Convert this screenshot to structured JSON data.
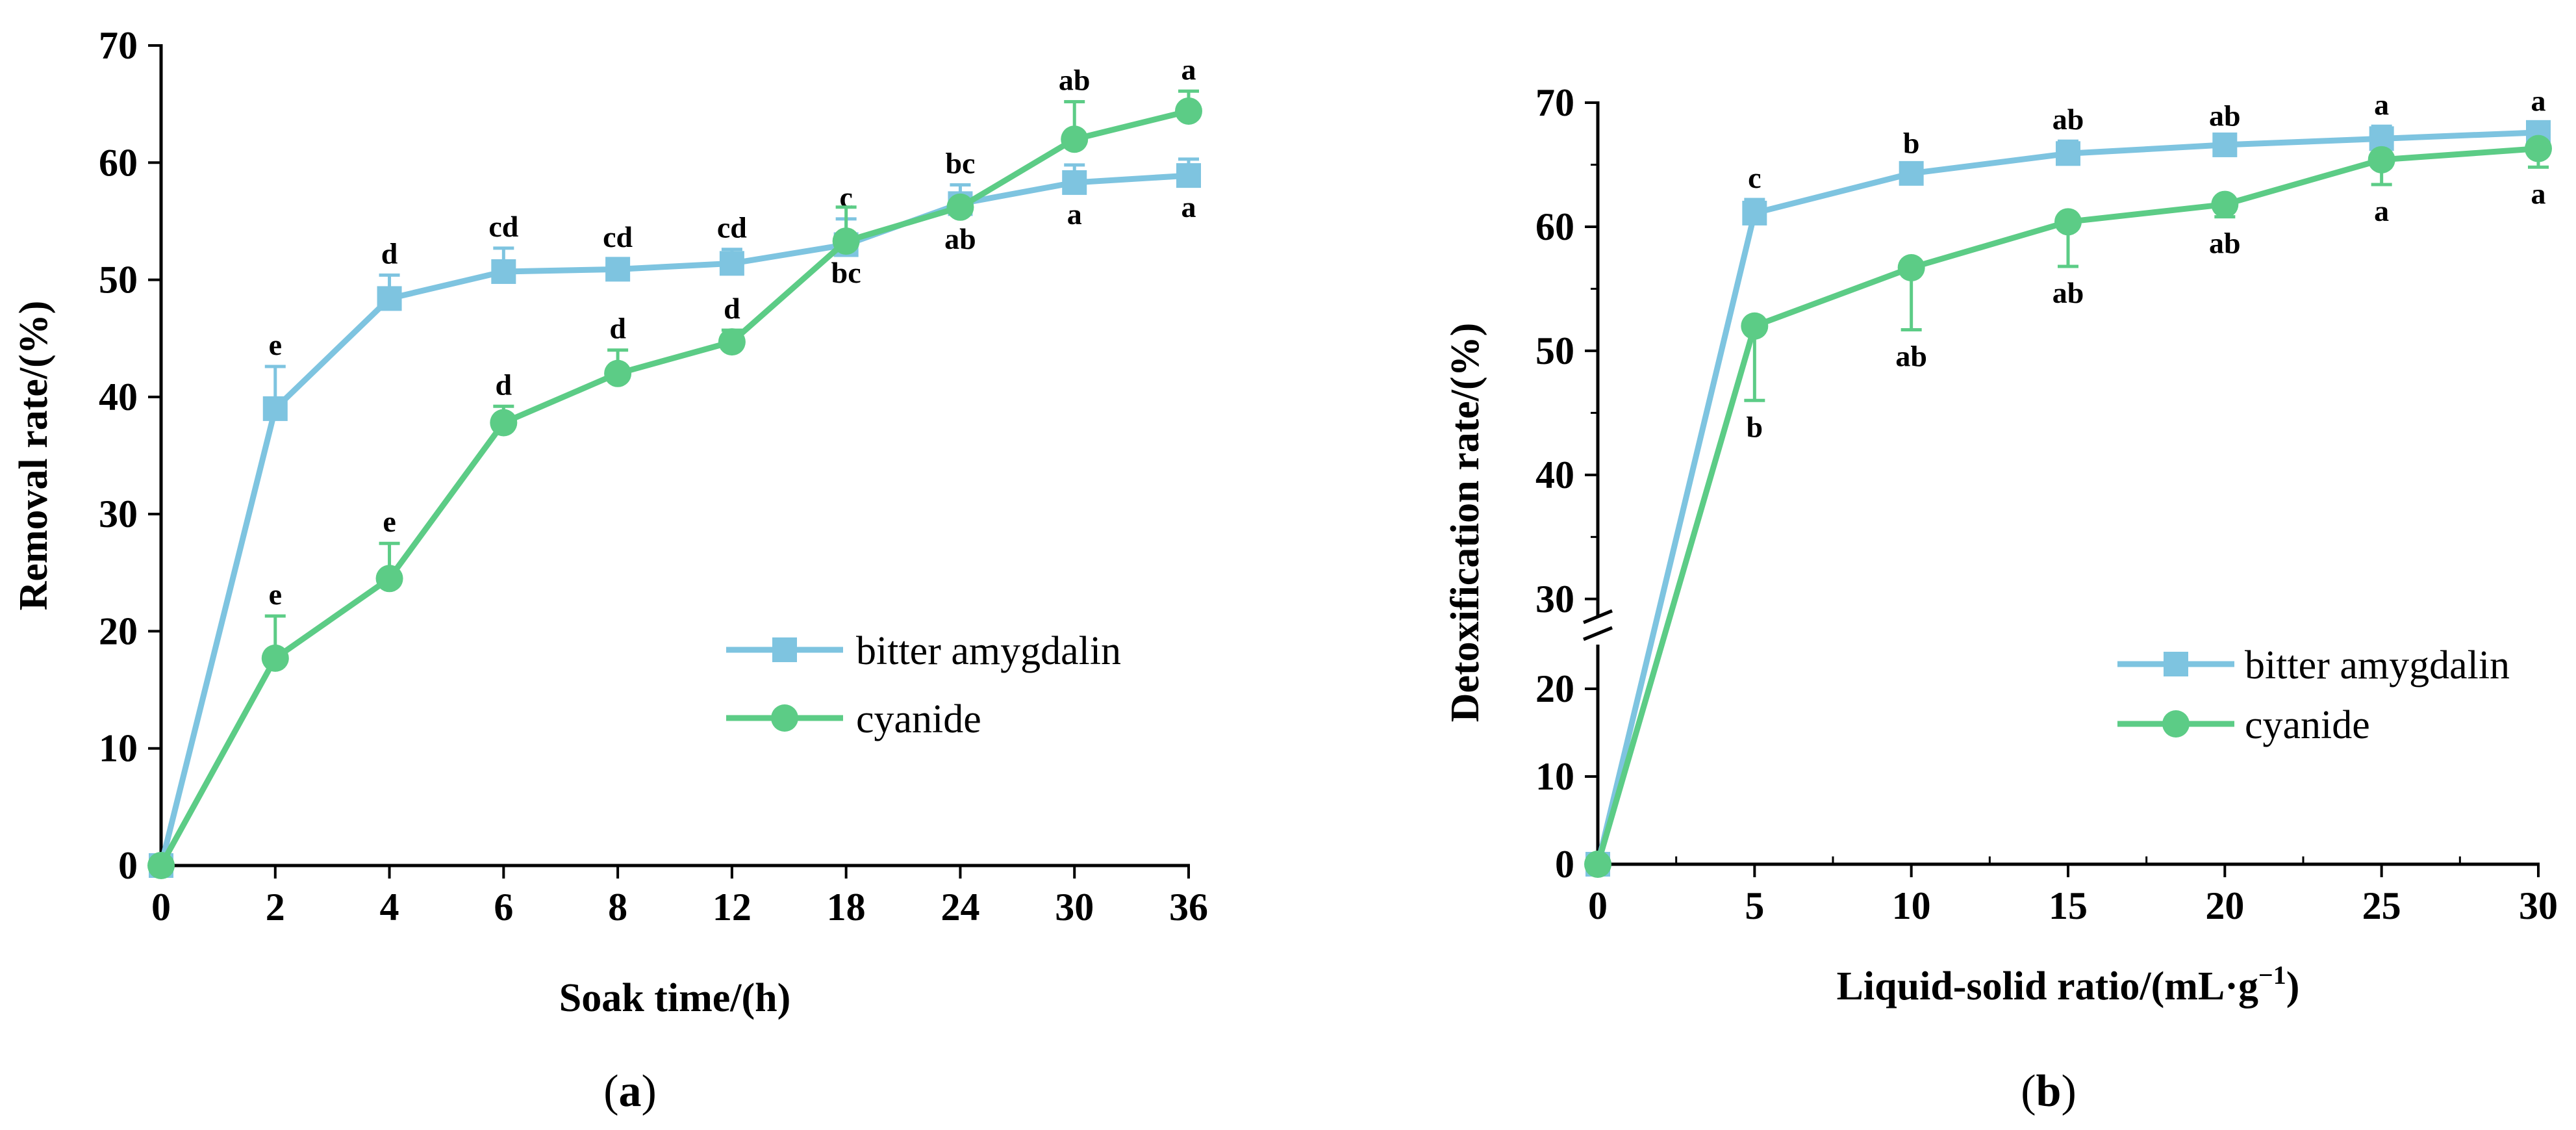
{
  "chart_data": [
    {
      "id": "a",
      "type": "line",
      "caption_letter": "a",
      "xlabel": "Soak time/(h)",
      "ylabel": "Removal rate/(%)",
      "categories": [
        "0",
        "2",
        "4",
        "6",
        "8",
        "12",
        "18",
        "24",
        "30",
        "36"
      ],
      "ylim": [
        0,
        70
      ],
      "yticks": [
        0,
        10,
        20,
        30,
        40,
        50,
        60,
        70
      ],
      "legend_position": "center-right",
      "series": [
        {
          "name": "bitter amygdalin",
          "color": "#7ec4e0",
          "marker": "square",
          "values": [
            0,
            39.0,
            48.4,
            50.7,
            50.9,
            51.4,
            53.0,
            56.5,
            58.3,
            58.9
          ],
          "errors": [
            0,
            3.6,
            2.0,
            2.0,
            0.9,
            1.2,
            2.2,
            1.6,
            1.5,
            1.4
          ],
          "labels": [
            "",
            "e",
            "d",
            "cd",
            "cd",
            "cd",
            "c",
            "bc",
            "a",
            "a"
          ],
          "label_pos": [
            "above",
            "above",
            "above",
            "above",
            "above",
            "above",
            "above",
            "above",
            "below",
            "below"
          ]
        },
        {
          "name": "cyanide",
          "color": "#5ccc86",
          "marker": "circle",
          "values": [
            0,
            17.7,
            24.5,
            37.8,
            42.0,
            44.7,
            53.3,
            56.2,
            62.0,
            64.4
          ],
          "errors": [
            0,
            3.6,
            3.0,
            1.4,
            2.0,
            1.0,
            2.9,
            0.3,
            3.2,
            1.7
          ],
          "labels": [
            "",
            "e",
            "e",
            "d",
            "d",
            "d",
            "bc",
            "ab",
            "ab",
            "a"
          ],
          "label_pos": [
            "above",
            "above",
            "above",
            "above",
            "above",
            "above",
            "below",
            "below",
            "above",
            "above"
          ]
        }
      ]
    },
    {
      "id": "b",
      "type": "line",
      "caption_letter": "b",
      "xlabel": "Liquid-solid ratio/(mL·g",
      "xlabel_sup": "−1",
      "xlabel_end": ")",
      "ylabel": "Detoxification rate/(%)",
      "x": [
        0,
        5,
        10,
        15,
        20,
        25,
        30
      ],
      "xlim": [
        0,
        30
      ],
      "xticks": [
        0,
        5,
        10,
        15,
        20,
        25,
        30
      ],
      "ylim": [
        0,
        70
      ],
      "yticks": [
        0,
        10,
        20,
        30,
        40,
        50,
        60,
        70
      ],
      "axis_break": [
        20,
        28
      ],
      "legend_position": "bottom-right",
      "series": [
        {
          "name": "bitter amygdalin",
          "color": "#7ec4e0",
          "marker": "square",
          "values": [
            0,
            61.1,
            64.3,
            65.9,
            66.6,
            67.1,
            67.6
          ],
          "errors": [
            0,
            1.1,
            0.7,
            1.0,
            0.6,
            1.0,
            0.8
          ],
          "labels": [
            "",
            "c",
            "b",
            "ab",
            "ab",
            "a",
            "a"
          ],
          "label_pos": [
            "above",
            "above",
            "above",
            "above",
            "above",
            "above",
            "above"
          ]
        },
        {
          "name": "cyanide",
          "color": "#5ccc86",
          "marker": "circle",
          "values": [
            0,
            52.0,
            56.7,
            60.4,
            61.8,
            65.4,
            66.3
          ],
          "errors": [
            0,
            6.0,
            5.0,
            3.6,
            1.0,
            2.0,
            1.5
          ],
          "labels": [
            "",
            "b",
            "ab",
            "ab",
            "ab",
            "a",
            "a"
          ],
          "label_pos": [
            "below",
            "below",
            "below",
            "below",
            "below",
            "below",
            "below"
          ]
        }
      ]
    }
  ]
}
